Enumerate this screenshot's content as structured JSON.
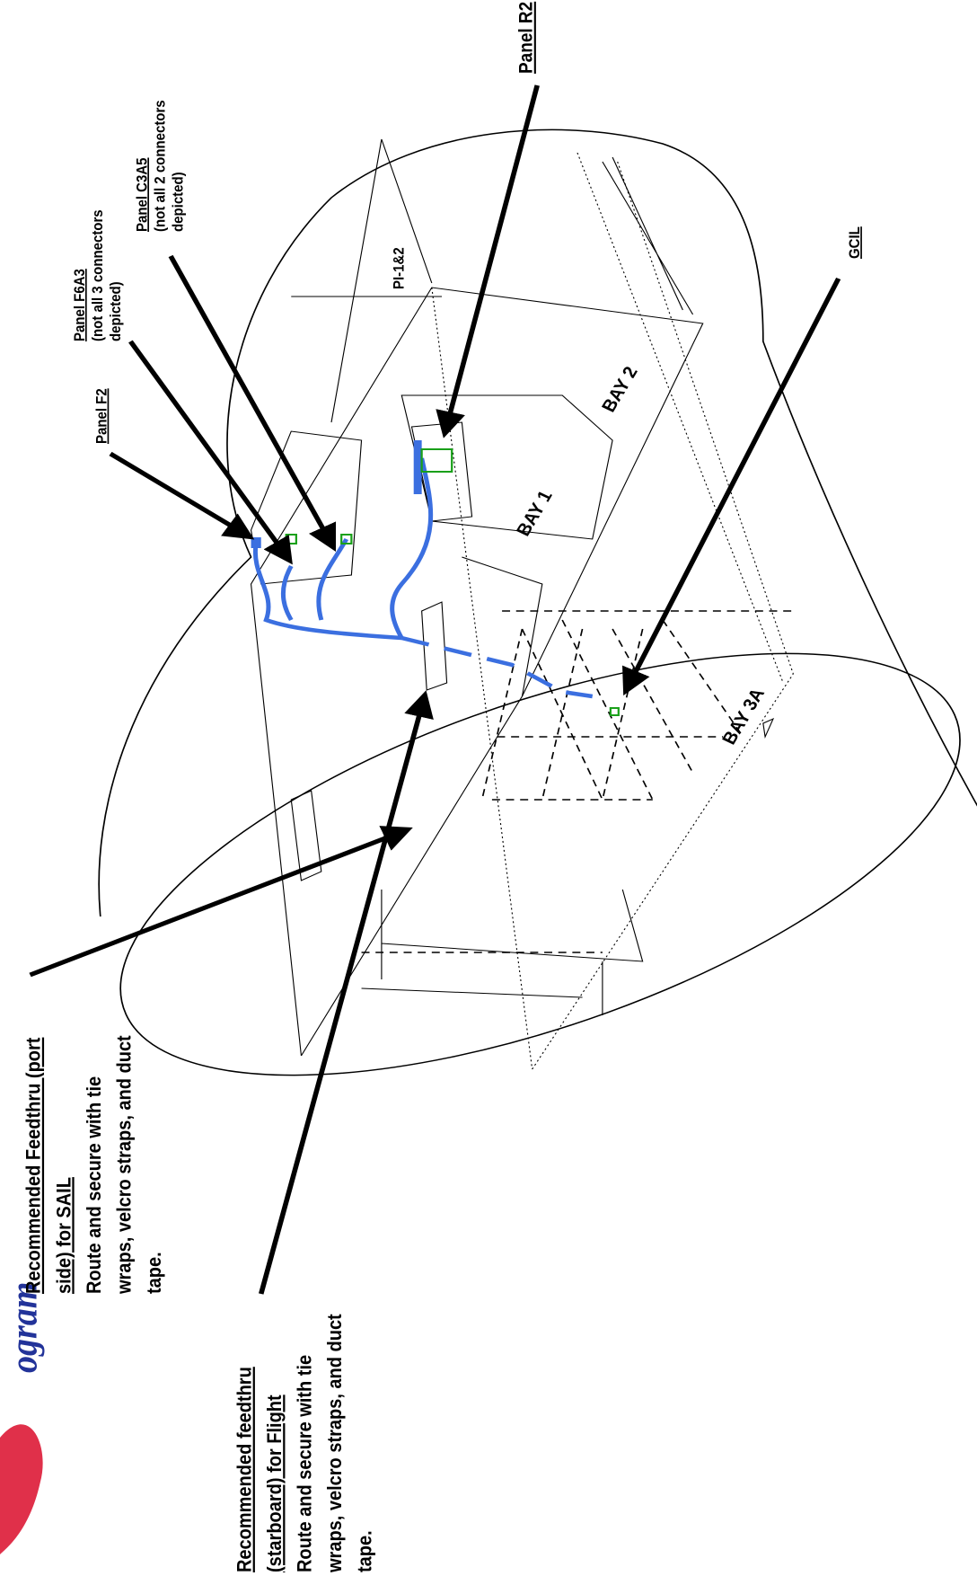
{
  "logo": "ogram",
  "callouts": {
    "panel_r2": "Panel R2",
    "panel_c3a5": {
      "title": "Panel C3A5",
      "note": [
        "(not all 2 connectors",
        "depicted)"
      ]
    },
    "panel_f6a3": {
      "title": "Panel F6A3",
      "note": [
        "(not all 3 connectors",
        "depicted)"
      ]
    },
    "panel_f2": "Panel F2",
    "gcil": "GCIL",
    "pi": "PI-1&2"
  },
  "bays": [
    "BAY 1",
    "BAY 2",
    "BAY 3A"
  ],
  "port_note": {
    "title": [
      "Recommended Feedthru (port",
      "side) for SAIL"
    ],
    "body": [
      "Route and secure with tie",
      "wraps, velcro straps, and duct",
      "tape."
    ]
  },
  "starboard_note": {
    "title": [
      "Recommended feedthru",
      "(starboard) for Flight"
    ],
    "body": [
      "Route and secure with tie",
      "wraps, velcro straps, and duct",
      "tape."
    ]
  }
}
